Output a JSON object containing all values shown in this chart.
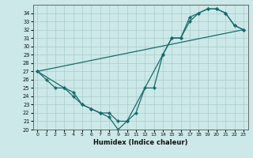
{
  "xlabel": "Humidex (Indice chaleur)",
  "bg_color": "#cce8e8",
  "grid_color": "#aacccc",
  "line_color": "#1a6b6b",
  "xlim": [
    -0.5,
    23.5
  ],
  "ylim": [
    20,
    35
  ],
  "xticks": [
    0,
    1,
    2,
    3,
    4,
    5,
    6,
    7,
    8,
    9,
    10,
    11,
    12,
    13,
    14,
    15,
    16,
    17,
    18,
    19,
    20,
    21,
    22,
    23
  ],
  "yticks": [
    20,
    21,
    22,
    23,
    24,
    25,
    26,
    27,
    28,
    29,
    30,
    31,
    32,
    33,
    34
  ],
  "line1_x": [
    0,
    1,
    2,
    3,
    4,
    5,
    6,
    7,
    8,
    9,
    10,
    14,
    15,
    16,
    17,
    18,
    19,
    20,
    21,
    22,
    23
  ],
  "line1_y": [
    27,
    26,
    25,
    25,
    24,
    23,
    22.5,
    22,
    21.5,
    20,
    21,
    29,
    31,
    31,
    33.5,
    34,
    34.5,
    34.5,
    34,
    32.5,
    32
  ],
  "line2_x": [
    0,
    3,
    4,
    5,
    6,
    7,
    8,
    9,
    10,
    11,
    12,
    13,
    14,
    15,
    16,
    17,
    18,
    19,
    20,
    21,
    22,
    23
  ],
  "line2_y": [
    27,
    25,
    24.5,
    23,
    22.5,
    22,
    22,
    21,
    21,
    22,
    25,
    25,
    29,
    31,
    31,
    33,
    34,
    34.5,
    34.5,
    34,
    32.5,
    32
  ],
  "line3_x": [
    0,
    23
  ],
  "line3_y": [
    27,
    32
  ]
}
